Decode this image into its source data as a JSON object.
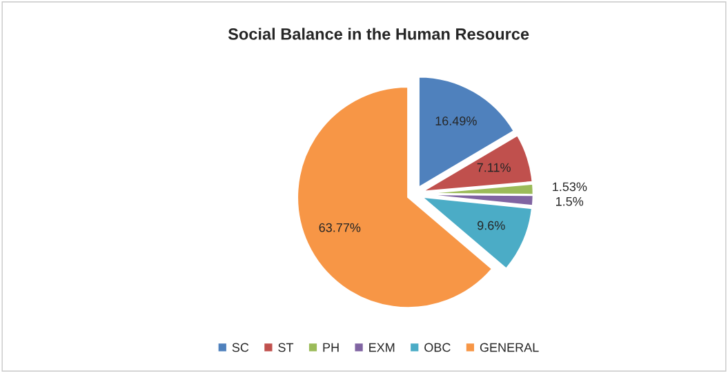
{
  "chart_data": {
    "type": "pie",
    "title": "Social Balance in the Human Resource",
    "categories": [
      "SC",
      "ST",
      "PH",
      "EXM",
      "OBC",
      "GENERAL"
    ],
    "values": [
      16.49,
      7.11,
      1.53,
      1.5,
      9.6,
      63.77
    ],
    "value_labels": [
      "16.49%",
      "7.11%",
      "1.53%",
      "1.5%",
      "9.6%",
      "63.77%"
    ],
    "colors": [
      "#4f81bd",
      "#c0504d",
      "#9bbb59",
      "#8064a2",
      "#4bacc6",
      "#f79646"
    ],
    "legend": "bottom"
  }
}
